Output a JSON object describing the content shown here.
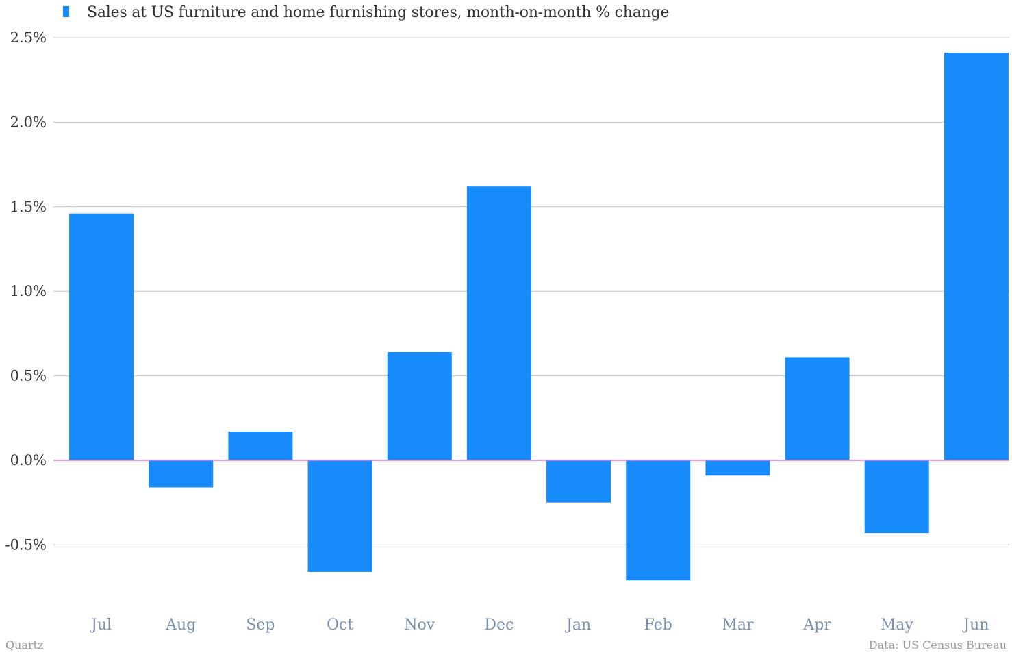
{
  "chart_data": {
    "type": "bar",
    "categories": [
      "Jul",
      "Aug",
      "Sep",
      "Oct",
      "Nov",
      "Dec",
      "Jan",
      "Feb",
      "Mar",
      "Apr",
      "May",
      "Jun"
    ],
    "series": [
      {
        "name": "Sales at US furniture and home furnishing stores, month-on-month % change",
        "values": [
          1.46,
          -0.16,
          0.17,
          -0.66,
          0.64,
          1.62,
          -0.25,
          -0.71,
          -0.09,
          0.61,
          -0.43,
          2.41
        ]
      }
    ],
    "ylim": [
      -0.75,
      2.5
    ],
    "yticks": [
      -0.5,
      0.0,
      0.5,
      1.0,
      1.5,
      2.0,
      2.5
    ],
    "ytick_labels": [
      "-0.5%",
      "0.0%",
      "0.5%",
      "1.0%",
      "1.5%",
      "2.0%",
      "2.5%"
    ],
    "grid": true,
    "legend_position": "top-left",
    "colors": {
      "bar": "#178bfa",
      "zero_line": "#e07ad8",
      "grid": "#c4c4c4",
      "tick_text": "#333333",
      "category_text": "#7990b0"
    }
  },
  "footer": {
    "source_brand": "Quartz",
    "data_source": "Data: US Census Bureau"
  }
}
